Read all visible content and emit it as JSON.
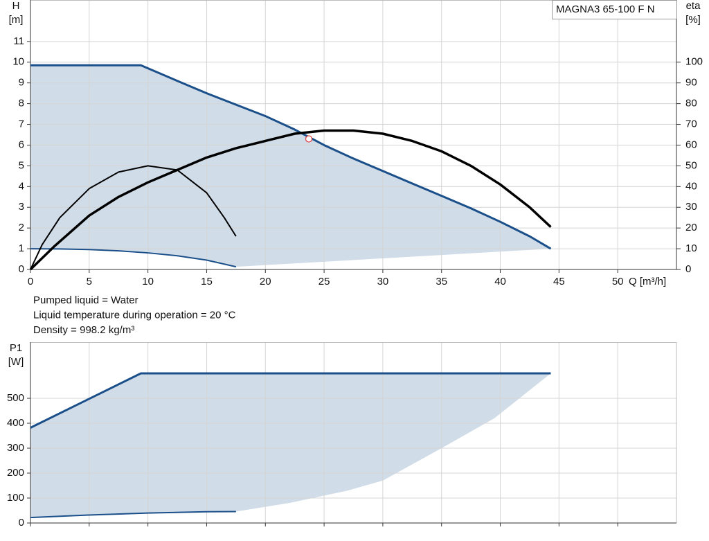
{
  "chart_data": [
    {
      "type": "line",
      "title": "MAGNA3 65-100 F N",
      "xlabel": "Q [m³/h]",
      "ylabel": "H",
      "yunit": "[m]",
      "y2label": "eta",
      "y2unit": "[%]",
      "xlim": [
        0,
        55
      ],
      "xticks": [
        0,
        5,
        10,
        15,
        20,
        25,
        30,
        35,
        40,
        45,
        50
      ],
      "ylim": [
        0,
        13
      ],
      "yticks": [
        0,
        1,
        2,
        3,
        4,
        5,
        6,
        7,
        8,
        9,
        10,
        11
      ],
      "y2lim": [
        0,
        130
      ],
      "y2ticks": [
        0,
        10,
        20,
        30,
        40,
        50,
        60,
        70,
        80,
        90,
        100
      ],
      "grid": true,
      "area_color": "#d0dce8",
      "series": [
        {
          "color": "#1b4f8a",
          "width": 3,
          "x": [
            0,
            9.4,
            12.5,
            15,
            17.5,
            20,
            22.5,
            25,
            27.5,
            30,
            32.5,
            35,
            37.5,
            40,
            42.5,
            44.3
          ],
          "values": [
            9.85,
            9.85,
            9.1,
            8.5,
            7.95,
            7.4,
            6.75,
            6.0,
            5.35,
            4.75,
            4.15,
            3.55,
            2.95,
            2.3,
            1.6,
            1.0
          ]
        },
        {
          "color": "#1b4f8a",
          "width": 2,
          "x": [
            0,
            2.5,
            5,
            7.5,
            10,
            12.5,
            15,
            17.5
          ],
          "values": [
            1.0,
            0.99,
            0.96,
            0.9,
            0.8,
            0.66,
            0.45,
            0.13
          ]
        },
        {
          "color": "#000000",
          "width": 3.5,
          "axis": "y2",
          "x": [
            0,
            2,
            5,
            7.5,
            10,
            12.5,
            15,
            17.5,
            20,
            22.5,
            25,
            27.5,
            30,
            32.5,
            35,
            37.5,
            40,
            42.5,
            44.3
          ],
          "values": [
            0,
            11,
            26,
            35,
            42,
            48,
            54,
            58.5,
            62,
            65.5,
            67,
            67,
            65.5,
            62,
            57,
            50,
            41,
            30,
            20.5
          ]
        },
        {
          "color": "#000000",
          "width": 2,
          "axis": "y2",
          "x": [
            0,
            1,
            2.5,
            5,
            7.5,
            10,
            12.5,
            15,
            16.5,
            17.5
          ],
          "values": [
            0,
            12,
            25,
            39,
            47,
            50,
            48,
            37,
            25,
            16
          ]
        }
      ],
      "duty_point": {
        "x": 23.7,
        "y": 6.3,
        "color": "#e03a3a"
      },
      "notes": [
        "Pumped liquid = Water",
        "Liquid temperature during operation = 20 °C",
        "Density = 998.2 kg/m³"
      ]
    },
    {
      "type": "line",
      "ylabel": "P1",
      "yunit": "[W]",
      "xlim": [
        0,
        55
      ],
      "xticks": [
        0,
        5,
        10,
        15,
        20,
        25,
        30,
        35,
        40,
        45,
        50
      ],
      "xtick_labels": false,
      "ylim": [
        0,
        725
      ],
      "yticks": [
        0,
        100,
        200,
        300,
        400,
        500
      ],
      "grid": true,
      "area_color": "#d0dce8",
      "series": [
        {
          "color": "#1b4f8a",
          "width": 3,
          "x": [
            0,
            9.4,
            44.3
          ],
          "values": [
            382,
            600,
            600
          ]
        },
        {
          "color": "#1b4f8a",
          "width": 2,
          "x": [
            0,
            5,
            10,
            15,
            17.5
          ],
          "values": [
            22,
            32,
            40,
            45,
            46
          ]
        }
      ],
      "area_boundary": {
        "x": [
          17.5,
          22,
          27,
          30,
          35,
          39.5,
          44.3
        ],
        "values": [
          46,
          80,
          130,
          170,
          300,
          420,
          600
        ]
      }
    }
  ]
}
